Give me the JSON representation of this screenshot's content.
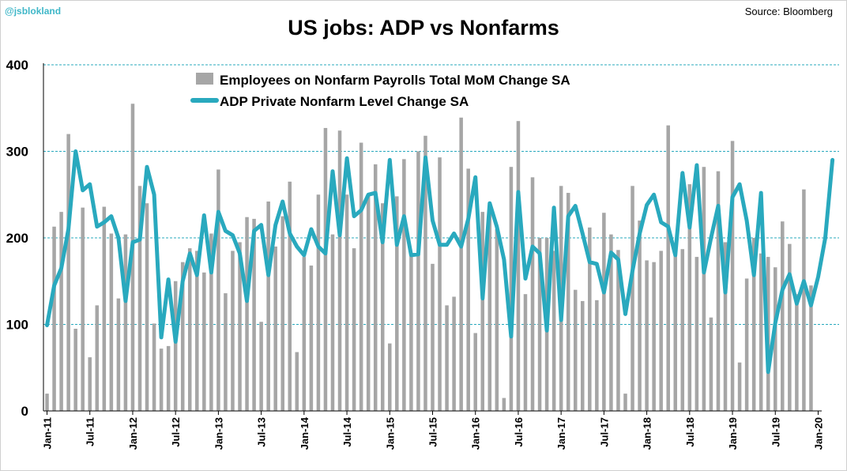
{
  "header": {
    "handle": "@jsblokland",
    "source": "Source: Bloomberg",
    "title": "US jobs: ADP vs Nonfarms"
  },
  "chart_data": {
    "type": "bar+line",
    "title": "US jobs: ADP vs Nonfarms",
    "xlabel": "",
    "ylabel": "",
    "ylim": [
      0,
      400
    ],
    "yticks": [
      0,
      100,
      200,
      300,
      400
    ],
    "grid": true,
    "legend_position": "top-left",
    "x_start": "2011-01",
    "x_tick_labels": [
      "Jan-11",
      "Jul-11",
      "Jan-12",
      "Jul-12",
      "Jan-13",
      "Jul-13",
      "Jan-14",
      "Jul-14",
      "Jan-15",
      "Jul-15",
      "Jan-16",
      "Jul-16",
      "Jan-17",
      "Jul-17",
      "Jan-18",
      "Jul-18",
      "Jan-19",
      "Jul-19",
      "Jan-20"
    ],
    "colors": {
      "bars": "#a6a6a6",
      "line": "#29a9be",
      "grid": "#29a9be"
    },
    "series": [
      {
        "name": "Employees on Nonfarm Payrolls Total MoM Change SA",
        "type": "bar",
        "values": [
          20,
          213,
          230,
          320,
          95,
          235,
          62,
          122,
          236,
          205,
          130,
          204,
          355,
          260,
          240,
          101,
          72,
          75,
          150,
          172,
          188,
          185,
          160,
          205,
          279,
          136,
          185,
          195,
          224,
          222,
          103,
          242,
          190,
          225,
          265,
          68,
          178,
          168,
          250,
          327,
          204,
          324,
          250,
          188,
          310,
          250,
          285,
          240,
          78,
          248,
          291,
          180,
          300,
          318,
          170,
          293,
          122,
          132,
          339,
          280,
          90,
          230,
          233,
          210,
          15,
          282,
          335,
          135,
          270,
          200,
          200,
          185,
          260,
          252,
          140,
          127,
          212,
          128,
          229,
          204,
          186,
          20,
          260,
          220,
          174,
          172,
          185,
          330,
          181,
          187,
          262,
          178,
          282,
          108,
          277,
          195,
          312,
          56,
          153,
          200,
          182,
          178,
          166,
          219,
          193,
          135,
          256,
          145
        ]
      },
      {
        "name": "ADP Private Nonfarm Level Change SA",
        "type": "line",
        "values": [
          99,
          145,
          165,
          210,
          300,
          255,
          262,
          213,
          218,
          225,
          200,
          127,
          195,
          198,
          282,
          250,
          85,
          152,
          80,
          150,
          182,
          157,
          226,
          160,
          230,
          208,
          203,
          182,
          127,
          208,
          215,
          157,
          215,
          242,
          205,
          190,
          180,
          210,
          190,
          182,
          277,
          203,
          292,
          225,
          232,
          250,
          252,
          195,
          290,
          192,
          225,
          180,
          181,
          293,
          220,
          192,
          192,
          205,
          190,
          222,
          270,
          130,
          240,
          213,
          175,
          86,
          253,
          153,
          190,
          182,
          93,
          235,
          105,
          225,
          237,
          205,
          172,
          170,
          137,
          183,
          175,
          112,
          162,
          205,
          238,
          250,
          218,
          213,
          180,
          275,
          212,
          284,
          160,
          200,
          237,
          137,
          247,
          262,
          220,
          157,
          252,
          45,
          102,
          140,
          158,
          124,
          150,
          122,
          155,
          200,
          290
        ]
      }
    ]
  }
}
